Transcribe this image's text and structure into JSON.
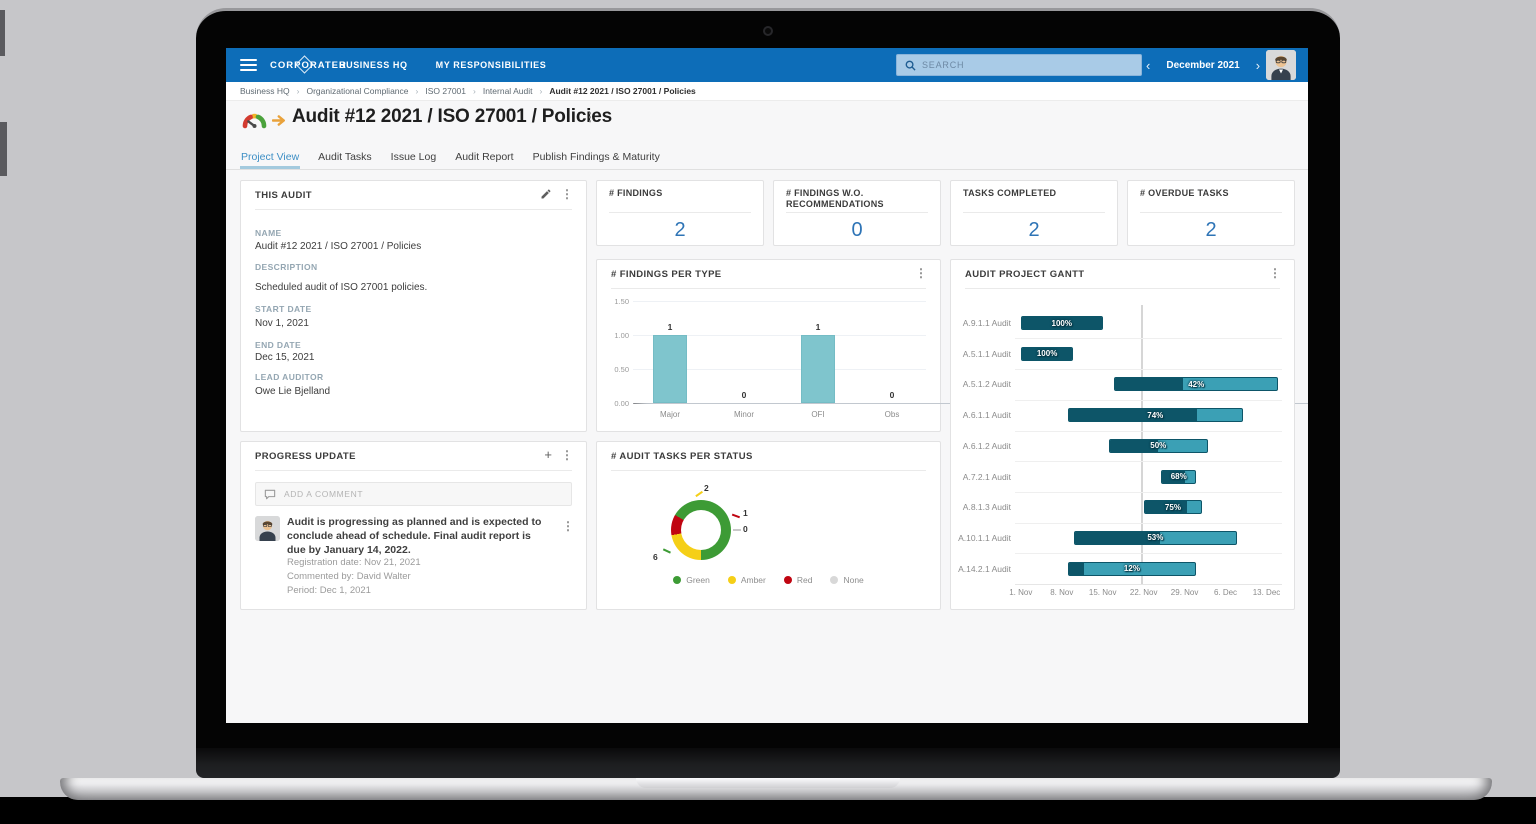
{
  "nav": {
    "brand": "CORPORATER",
    "menu": [
      {
        "label": "BUSINESS HQ"
      },
      {
        "label": "MY RESPONSIBILITIES"
      }
    ],
    "search_placeholder": "SEARCH",
    "period_label": "December 2021"
  },
  "icons": {
    "more_glyph": "⋮",
    "add_glyph": "+",
    "prev_glyph": "‹",
    "next_glyph": "›"
  },
  "breadcrumb": {
    "separator": "›",
    "items": [
      "Business HQ",
      "Organizational Compliance",
      "ISO 27001",
      "Internal Audit",
      "Audit #12 2021 / ISO 27001 / Policies"
    ]
  },
  "page": {
    "title": "Audit #12 2021 / ISO 27001 / Policies",
    "tabs": [
      {
        "label": "Project View",
        "active": true
      },
      {
        "label": "Audit Tasks",
        "active": false
      },
      {
        "label": "Issue Log",
        "active": false
      },
      {
        "label": "Audit Report",
        "active": false
      },
      {
        "label": "Publish Findings & Maturity",
        "active": false
      }
    ]
  },
  "this_audit": {
    "title": "THIS AUDIT",
    "fields": [
      {
        "label": "NAME",
        "value": "Audit #12 2021 / ISO 27001 / Policies"
      },
      {
        "label": "DESCRIPTION",
        "value": "Scheduled audit of ISO 27001 policies."
      },
      {
        "label": "START DATE",
        "value": "Nov 1, 2021"
      },
      {
        "label": "END DATE",
        "value": "Dec 15, 2021"
      },
      {
        "label": "LEAD AUDITOR",
        "value": "Owe Lie Bjelland"
      }
    ]
  },
  "kpis": [
    {
      "label": "# FINDINGS",
      "value": "2"
    },
    {
      "label": "# FINDINGS W.O. RECOMMENDATIONS",
      "value": "0"
    },
    {
      "label": "TASKS COMPLETED",
      "value": "2"
    },
    {
      "label": "# OVERDUE TASKS",
      "value": "2"
    }
  ],
  "progress": {
    "title": "PROGRESS UPDATE",
    "add_comment_placeholder": "ADD A COMMENT",
    "comment": {
      "text": "Audit is progressing as planned and is expected to conclude ahead of schedule. Final audit report is due by January 14, 2022.",
      "meta": [
        "Registration date: Nov 21, 2021",
        "Commented by: David Walter",
        "Period: Dec 1, 2021"
      ]
    }
  },
  "chart_data": [
    {
      "id": "findings_per_type",
      "type": "bar",
      "title": "# FINDINGS PER TYPE",
      "categories": [
        "Major",
        "Minor",
        "OFI",
        "Obs"
      ],
      "values": [
        1,
        0,
        1,
        0
      ],
      "ylim": [
        0,
        1.5
      ],
      "yticks": [
        "0.00",
        "0.50",
        "1.00",
        "1.50"
      ],
      "bar_color": "#7fc5cd",
      "grid": true,
      "legend_position": "none"
    },
    {
      "id": "audit_tasks_per_status",
      "type": "pie",
      "title": "# AUDIT TASKS PER STATUS",
      "labels": [
        "Green",
        "Amber",
        "Red",
        "None"
      ],
      "values": [
        6,
        2,
        1,
        0
      ],
      "colors": [
        "#3d9b35",
        "#f5cf17",
        "#c00511",
        "#d8d8d8"
      ],
      "donut": true,
      "start_angle_deg": -60,
      "legend_position": "bottom"
    },
    {
      "id": "audit_project_gantt",
      "type": "gantt",
      "title": "AUDIT PROJECT GANTT",
      "x_ticks": [
        "1. Nov",
        "8. Nov",
        "15. Nov",
        "22. Nov",
        "29. Nov",
        "6. Dec",
        "13. Dec"
      ],
      "tick_days": [
        0,
        7,
        14,
        21,
        28,
        35,
        42
      ],
      "day_domain": [
        -1,
        45
      ],
      "today_day": 20.5,
      "colors": {
        "complete": "#0d5568",
        "remaining": "#3ba0b5"
      },
      "rows": [
        {
          "label": "A.9.1.1 Audit",
          "start_day": 0,
          "end_day": 14,
          "percent": 100,
          "percent_label": "100%"
        },
        {
          "label": "A.5.1.1 Audit",
          "start_day": 0,
          "end_day": 9,
          "percent": 100,
          "percent_label": "100%"
        },
        {
          "label": "A.5.1.2 Audit",
          "start_day": 16,
          "end_day": 44,
          "percent": 42,
          "percent_label": "42%"
        },
        {
          "label": "A.6.1.1 Audit",
          "start_day": 8,
          "end_day": 38,
          "percent": 74,
          "percent_label": "74%"
        },
        {
          "label": "A.6.1.2 Audit",
          "start_day": 15,
          "end_day": 32,
          "percent": 50,
          "percent_label": "50%"
        },
        {
          "label": "A.7.2.1 Audit",
          "start_day": 24,
          "end_day": 30,
          "percent": 68,
          "percent_label": "68%"
        },
        {
          "label": "A.8.1.3 Audit",
          "start_day": 21,
          "end_day": 31,
          "percent": 75,
          "percent_label": "75%"
        },
        {
          "label": "A.10.1.1 Audit",
          "start_day": 9,
          "end_day": 37,
          "percent": 53,
          "percent_label": "53%"
        },
        {
          "label": "A.14.2.1 Audit",
          "start_day": 8,
          "end_day": 30,
          "percent": 12,
          "percent_label": "12%"
        }
      ]
    }
  ]
}
